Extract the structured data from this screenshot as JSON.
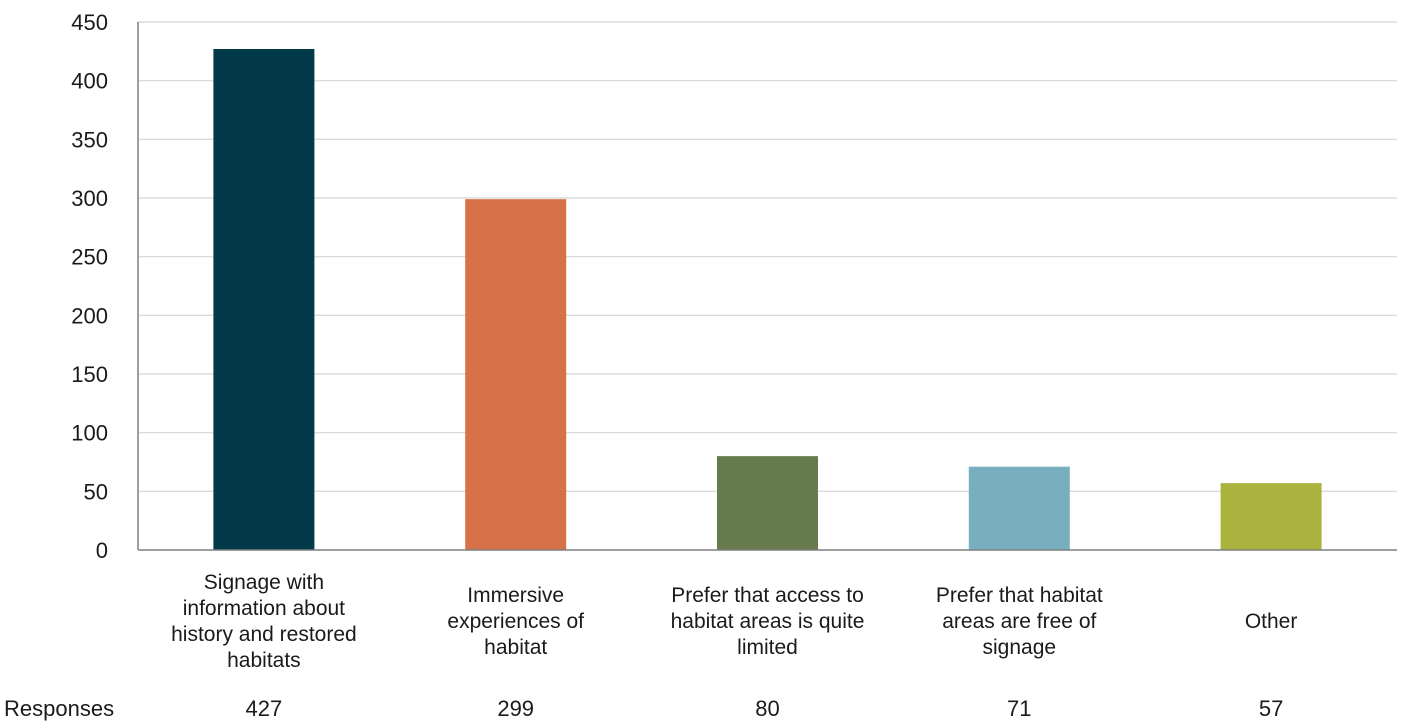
{
  "chart_data": {
    "type": "bar",
    "categories": [
      "Signage with information about history and restored habitats",
      "Immersive experiences of habitat",
      "Prefer that access to habitat areas is quite limited",
      "Prefer that habitat areas are free of signage",
      "Other"
    ],
    "category_lines": [
      [
        "Signage with",
        "information about",
        "history and restored",
        "habitats"
      ],
      [
        "Immersive",
        "experiences of",
        "habitat"
      ],
      [
        "Prefer that access to",
        "habitat areas is quite",
        "limited"
      ],
      [
        "Prefer that habitat",
        "areas are free of",
        "signage"
      ],
      [
        "Other"
      ]
    ],
    "series": [
      {
        "name": "Responses",
        "values": [
          427,
          299,
          80,
          71,
          57
        ]
      }
    ],
    "colors": [
      "#033a4a",
      "#d77148",
      "#657b4d",
      "#78afbf",
      "#abb33f"
    ],
    "ylim": [
      0,
      450
    ],
    "yticks": [
      0,
      50,
      100,
      150,
      200,
      250,
      300,
      350,
      400,
      450
    ],
    "grid": true,
    "data_table": {
      "row_label": "Responses",
      "values": [
        "427",
        "299",
        "80",
        "71",
        "57"
      ]
    }
  }
}
